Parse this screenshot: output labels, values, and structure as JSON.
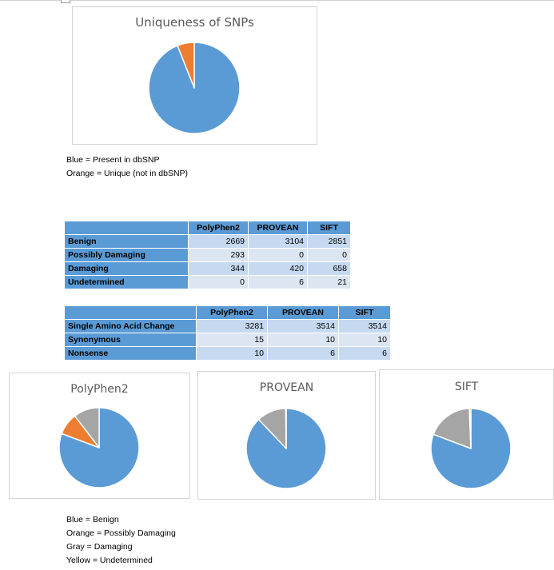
{
  "colors": {
    "blue": "#5b9bd5",
    "orange": "#ed7d31",
    "gray": "#a5a5a5",
    "yellow": "#ffc000"
  },
  "legend1": [
    "Blue = Present in dbSNP",
    "Orange = Unique (not in dbSNP)"
  ],
  "legend2": [
    "Blue = Benign",
    "Orange = Possibly Damaging",
    "Gray = Damaging",
    "Yellow = Undetermined"
  ],
  "table1": {
    "headers": [
      "",
      "PolyPhen2",
      "PROVEAN",
      "SIFT"
    ],
    "rows": [
      {
        "label": "Benign",
        "values": [
          "2669",
          "3104",
          "2851"
        ]
      },
      {
        "label": "Possibly Damaging",
        "values": [
          "293",
          "0",
          "0"
        ]
      },
      {
        "label": "Damaging",
        "values": [
          "344",
          "420",
          "658"
        ]
      },
      {
        "label": "Undetermined",
        "values": [
          "0",
          "6",
          "21"
        ]
      }
    ]
  },
  "table2": {
    "headers": [
      "",
      "PolyPhen2",
      "PROVEAN",
      "SIFT"
    ],
    "rows": [
      {
        "label": "Single Amino Acid Change",
        "values": [
          "3281",
          "3514",
          "3514"
        ]
      },
      {
        "label": "Synonymous",
        "values": [
          "15",
          "10",
          "10"
        ]
      },
      {
        "label": "Nonsense",
        "values": [
          "10",
          "6",
          "6"
        ]
      }
    ]
  },
  "chart_data": [
    {
      "type": "pie",
      "title": "Uniqueness of SNPs",
      "series": [
        {
          "values": [
            94,
            6
          ],
          "colors": [
            "#5b9bd5",
            "#ed7d31"
          ]
        }
      ]
    },
    {
      "type": "pie",
      "title": "PolyPhen2",
      "series": [
        {
          "values": [
            2669,
            293,
            344,
            0
          ],
          "colors": [
            "#5b9bd5",
            "#ed7d31",
            "#a5a5a5",
            "#ffc000"
          ]
        }
      ]
    },
    {
      "type": "pie",
      "title": "PROVEAN",
      "series": [
        {
          "values": [
            3104,
            0,
            420,
            6
          ],
          "colors": [
            "#5b9bd5",
            "#ed7d31",
            "#a5a5a5",
            "#ffc000"
          ]
        }
      ]
    },
    {
      "type": "pie",
      "title": "SIFT",
      "series": [
        {
          "values": [
            2851,
            0,
            658,
            21
          ],
          "colors": [
            "#5b9bd5",
            "#ed7d31",
            "#a5a5a5",
            "#ffc000"
          ]
        }
      ]
    }
  ]
}
